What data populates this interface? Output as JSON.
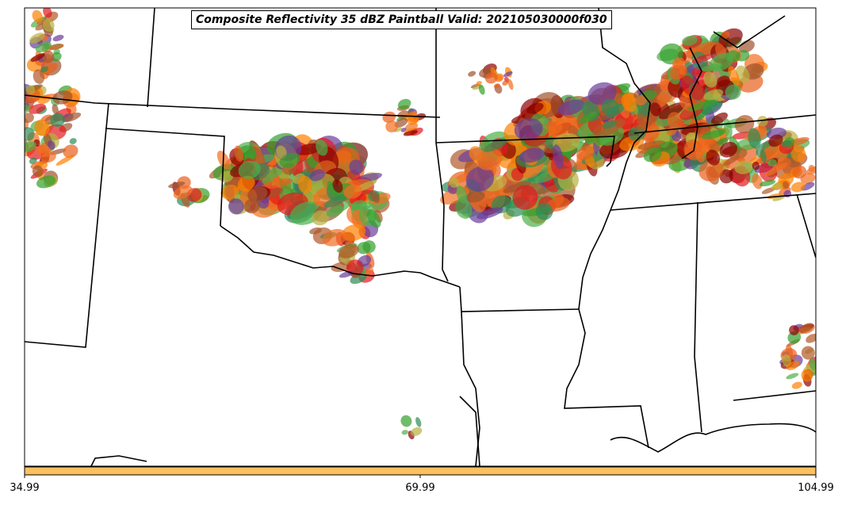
{
  "map": {
    "title": "Composite Reflectivity 35 dBZ Paintball Valid: 202105030000f030",
    "colorbar": {
      "color": "#fdbf5f",
      "ticks": [
        "34.99",
        "69.99",
        "104.99"
      ]
    },
    "paintball_colors": [
      "#e31a1c",
      "#ff7f00",
      "#33a02c",
      "#6a3d9a",
      "#b15928",
      "#a0522d",
      "#b8b040",
      "#4daf4a",
      "#e8601c",
      "#f26d21",
      "#2e8b57",
      "#8b0000"
    ]
  }
}
